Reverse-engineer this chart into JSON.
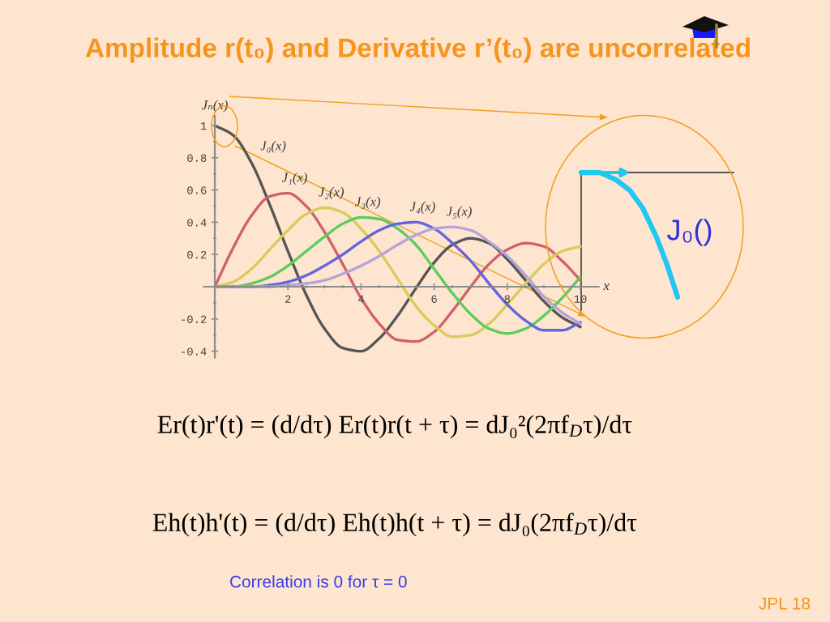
{
  "chart_data": {
    "type": "line",
    "title": "Amplitude r(t₀) and Derivative r’(t₀) are uncorrelated",
    "xlabel": "x",
    "ylabel": "Jₙ(x)",
    "x": [
      0,
      0.5,
      1,
      1.5,
      2,
      2.5,
      3,
      3.5,
      4,
      4.5,
      5,
      5.5,
      6,
      6.5,
      7,
      7.5,
      8,
      8.5,
      9,
      9.5,
      10
    ],
    "xlim": [
      -0.3,
      10.5
    ],
    "ylim": [
      -0.44,
      1.06
    ],
    "xticks": [
      2,
      4,
      6,
      8,
      10,
      {
        "value": 0.5,
        "label": null
      },
      {
        "value": 1,
        "label": null
      },
      {
        "value": 1.5,
        "label": null
      },
      {
        "value": 2.5,
        "label": null
      },
      {
        "value": 3,
        "label": null
      },
      {
        "value": 3.5,
        "label": null
      },
      {
        "value": 4.5,
        "label": null
      },
      {
        "value": 5,
        "label": null
      },
      {
        "value": 5.5,
        "label": null
      },
      {
        "value": 6.5,
        "label": null
      },
      {
        "value": 7,
        "label": null
      },
      {
        "value": 7.5,
        "label": null
      },
      {
        "value": 8.5,
        "label": null
      },
      {
        "value": 9,
        "label": null
      },
      {
        "value": 9.5,
        "label": null
      }
    ],
    "yticks": [
      -0.4,
      -0.2,
      0.2,
      0.4,
      0.6,
      0.8,
      1,
      {
        "value": -0.3,
        "label": null
      },
      {
        "value": -0.1,
        "label": null
      },
      {
        "value": 0.1,
        "label": null
      },
      {
        "value": 0.3,
        "label": null
      },
      {
        "value": 0.5,
        "label": null
      },
      {
        "value": 0.7,
        "label": null
      },
      {
        "value": 0.9,
        "label": null
      }
    ],
    "series": [
      {
        "name": "J₀(x)",
        "color": "#555555",
        "values": [
          1,
          0.94,
          0.77,
          0.51,
          0.22,
          -0.05,
          -0.26,
          -0.38,
          -0.4,
          -0.32,
          -0.18,
          -0.01,
          0.15,
          0.26,
          0.3,
          0.27,
          0.17,
          0.04,
          -0.09,
          -0.19,
          -0.25
        ]
      },
      {
        "name": "J₁(x)",
        "color": "#d0606e",
        "values": [
          0,
          0.24,
          0.44,
          0.56,
          0.58,
          0.5,
          0.34,
          0.14,
          -0.07,
          -0.23,
          -0.33,
          -0.34,
          -0.28,
          -0.15,
          0.0,
          0.14,
          0.23,
          0.27,
          0.25,
          0.16,
          0.04
        ]
      },
      {
        "name": "J₂(x)",
        "color": "#d8cc58",
        "values": [
          0,
          0.03,
          0.11,
          0.23,
          0.35,
          0.45,
          0.49,
          0.46,
          0.36,
          0.22,
          0.05,
          -0.12,
          -0.24,
          -0.31,
          -0.3,
          -0.23,
          -0.11,
          0.02,
          0.14,
          0.22,
          0.25
        ]
      },
      {
        "name": "J₃(x)",
        "color": "#5ccc5c",
        "values": [
          0,
          0.0,
          0.02,
          0.06,
          0.13,
          0.22,
          0.31,
          0.39,
          0.43,
          0.42,
          0.36,
          0.26,
          0.11,
          -0.04,
          -0.17,
          -0.26,
          -0.29,
          -0.26,
          -0.18,
          -0.07,
          0.06
        ]
      },
      {
        "name": "J₄(x)",
        "color": "#6464dc",
        "values": [
          0,
          0.0,
          0.0,
          0.01,
          0.03,
          0.07,
          0.13,
          0.2,
          0.28,
          0.35,
          0.39,
          0.4,
          0.36,
          0.27,
          0.16,
          0.02,
          -0.11,
          -0.21,
          -0.27,
          -0.27,
          -0.22
        ]
      },
      {
        "name": "J₅(x)",
        "color": "#b4a4d8",
        "values": [
          0,
          0.0,
          0.0,
          0.0,
          0.01,
          0.02,
          0.04,
          0.08,
          0.13,
          0.19,
          0.26,
          0.32,
          0.36,
          0.37,
          0.35,
          0.28,
          0.19,
          0.07,
          -0.06,
          -0.16,
          -0.23
        ]
      }
    ],
    "annotations": [
      "Er(t)r'(t) = (d/dτ) Er(t)r(t + τ) = dJ₀²(2πf$_{D}$τ)/dτ",
      "Eh(t)h'(t) = (d/dτ) Eh(t)h(t + τ) = dJ₀(2πf$_{D}$τ)/dτ",
      "Correlation is 0 for τ = 0",
      "J₀()",
      "JPL 18"
    ]
  }
}
